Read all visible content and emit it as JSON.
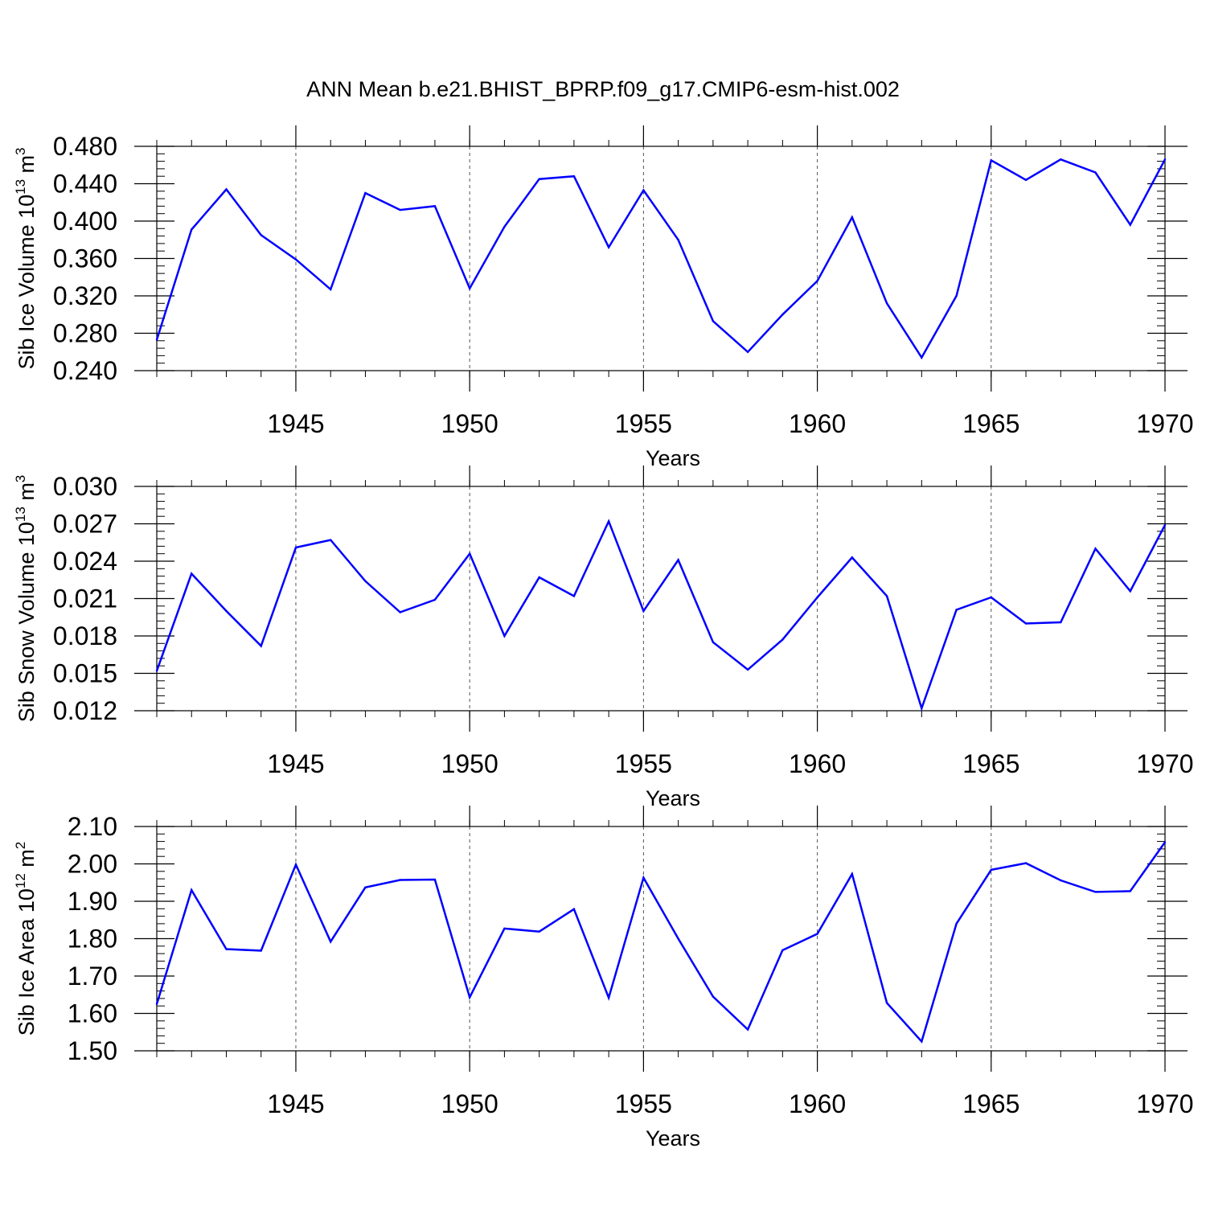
{
  "title": "ANN Mean b.e21.BHIST_BPRP.f09_g17.CMIP6-esm-hist.002",
  "colors": {
    "line": "#0000ff",
    "axis": "#000000",
    "grid": "#555555"
  },
  "chart_data": [
    {
      "type": "line",
      "ylabel": {
        "base": "Sib Ice Volume 10",
        "exp": "13",
        "unit": " m",
        "unit_exp": "3"
      },
      "xlabel": "Years",
      "xlim": [
        1941,
        1970
      ],
      "ylim": [
        0.24,
        0.48
      ],
      "yticks": [
        0.24,
        0.28,
        0.32,
        0.36,
        0.4,
        0.44,
        0.48
      ],
      "ytick_labels": [
        "0.240",
        "0.280",
        "0.320",
        "0.360",
        "0.400",
        "0.440",
        "0.480"
      ],
      "xticks": [
        1945,
        1950,
        1955,
        1960,
        1965,
        1970
      ],
      "xtick_labels": [
        "1945",
        "1950",
        "1955",
        "1960",
        "1965",
        "1970"
      ],
      "grid": "vertical dashed at major x ticks",
      "x": [
        1941,
        1942,
        1943,
        1944,
        1945,
        1946,
        1947,
        1948,
        1949,
        1950,
        1951,
        1952,
        1953,
        1954,
        1955,
        1956,
        1957,
        1958,
        1959,
        1960,
        1961,
        1962,
        1963,
        1964,
        1965,
        1966,
        1967,
        1968,
        1969,
        1970
      ],
      "series": [
        {
          "name": "Sib Ice Volume",
          "values": [
            0.273,
            0.391,
            0.434,
            0.385,
            0.359,
            0.327,
            0.43,
            0.412,
            0.416,
            0.328,
            0.394,
            0.445,
            0.448,
            0.372,
            0.433,
            0.38,
            0.293,
            0.26,
            0.3,
            0.336,
            0.404,
            0.312,
            0.254,
            0.32,
            0.465,
            0.444,
            0.466,
            0.452,
            0.396,
            0.466
          ]
        }
      ]
    },
    {
      "type": "line",
      "ylabel": {
        "base": "Sib Snow Volume 10",
        "exp": "13",
        "unit": " m",
        "unit_exp": "3"
      },
      "xlabel": "Years",
      "xlim": [
        1941,
        1970
      ],
      "ylim": [
        0.012,
        0.03
      ],
      "yticks": [
        0.012,
        0.015,
        0.018,
        0.021,
        0.024,
        0.027,
        0.03
      ],
      "ytick_labels": [
        "0.012",
        "0.015",
        "0.018",
        "0.021",
        "0.024",
        "0.027",
        "0.030"
      ],
      "xticks": [
        1945,
        1950,
        1955,
        1960,
        1965,
        1970
      ],
      "xtick_labels": [
        "1945",
        "1950",
        "1955",
        "1960",
        "1965",
        "1970"
      ],
      "grid": "vertical dashed at major x ticks",
      "x": [
        1941,
        1942,
        1943,
        1944,
        1945,
        1946,
        1947,
        1948,
        1949,
        1950,
        1951,
        1952,
        1953,
        1954,
        1955,
        1956,
        1957,
        1958,
        1959,
        1960,
        1961,
        1962,
        1963,
        1964,
        1965,
        1966,
        1967,
        1968,
        1969,
        1970
      ],
      "series": [
        {
          "name": "Sib Snow Volume",
          "values": [
            0.0152,
            0.023,
            0.02,
            0.0172,
            0.0251,
            0.0257,
            0.0224,
            0.0199,
            0.0209,
            0.0246,
            0.018,
            0.0227,
            0.0212,
            0.0272,
            0.02,
            0.0241,
            0.0175,
            0.0153,
            0.0177,
            0.0211,
            0.0243,
            0.0212,
            0.0122,
            0.0201,
            0.0211,
            0.019,
            0.0191,
            0.025,
            0.0216,
            0.0269
          ]
        }
      ]
    },
    {
      "type": "line",
      "ylabel": {
        "base": "Sib Ice Area 10",
        "exp": "12",
        "unit": " m",
        "unit_exp": "2"
      },
      "xlabel": "Years",
      "xlim": [
        1941,
        1970
      ],
      "ylim": [
        1.5,
        2.1
      ],
      "yticks": [
        1.5,
        1.6,
        1.7,
        1.8,
        1.9,
        2.0,
        2.1
      ],
      "ytick_labels": [
        "1.50",
        "1.60",
        "1.70",
        "1.80",
        "1.90",
        "2.00",
        "2.10"
      ],
      "xticks": [
        1945,
        1950,
        1955,
        1960,
        1965,
        1970
      ],
      "xtick_labels": [
        "1945",
        "1950",
        "1955",
        "1960",
        "1965",
        "1970"
      ],
      "grid": "vertical dashed at major x ticks",
      "x": [
        1941,
        1942,
        1943,
        1944,
        1945,
        1946,
        1947,
        1948,
        1949,
        1950,
        1951,
        1952,
        1953,
        1954,
        1955,
        1956,
        1957,
        1958,
        1959,
        1960,
        1961,
        1962,
        1963,
        1964,
        1965,
        1966,
        1967,
        1968,
        1969,
        1970
      ],
      "series": [
        {
          "name": "Sib Ice Area",
          "values": [
            1.625,
            1.93,
            1.772,
            1.768,
            1.998,
            1.792,
            1.937,
            1.957,
            1.958,
            1.643,
            1.827,
            1.819,
            1.879,
            1.642,
            1.963,
            1.8,
            1.645,
            1.557,
            1.769,
            1.813,
            1.973,
            1.628,
            1.525,
            1.84,
            1.984,
            2.002,
            1.956,
            1.925,
            1.927,
            2.058
          ]
        }
      ]
    }
  ]
}
